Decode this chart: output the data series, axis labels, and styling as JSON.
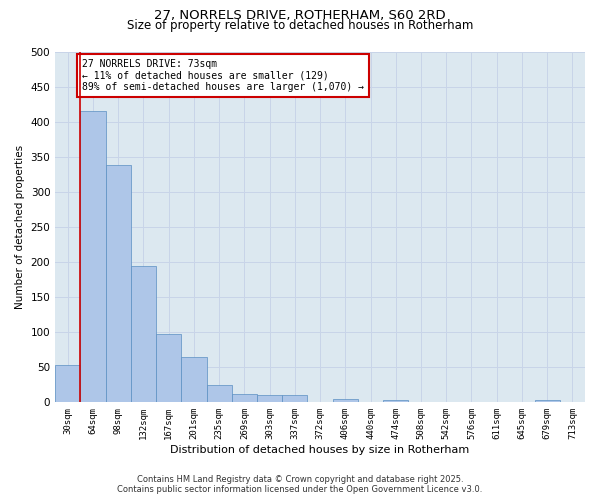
{
  "title_line1": "27, NORRELS DRIVE, ROTHERHAM, S60 2RD",
  "title_line2": "Size of property relative to detached houses in Rotherham",
  "xlabel": "Distribution of detached houses by size in Rotherham",
  "ylabel": "Number of detached properties",
  "categories": [
    "30sqm",
    "64sqm",
    "98sqm",
    "132sqm",
    "167sqm",
    "201sqm",
    "235sqm",
    "269sqm",
    "303sqm",
    "337sqm",
    "372sqm",
    "406sqm",
    "440sqm",
    "474sqm",
    "508sqm",
    "542sqm",
    "576sqm",
    "611sqm",
    "645sqm",
    "679sqm",
    "713sqm"
  ],
  "values": [
    53,
    415,
    338,
    195,
    97,
    65,
    25,
    12,
    10,
    10,
    0,
    5,
    0,
    3,
    0,
    0,
    0,
    0,
    0,
    3,
    0
  ],
  "bar_color": "#aec6e8",
  "bar_edge_color": "#5a8fc2",
  "vline_color": "#cc0000",
  "annotation_box_text": "27 NORRELS DRIVE: 73sqm\n← 11% of detached houses are smaller (129)\n89% of semi-detached houses are larger (1,070) →",
  "annotation_box_color": "#cc0000",
  "annotation_box_bg": "#ffffff",
  "ylim": [
    0,
    500
  ],
  "yticks": [
    0,
    50,
    100,
    150,
    200,
    250,
    300,
    350,
    400,
    450,
    500
  ],
  "grid_color": "#c8d4e8",
  "bg_color": "#dce8f0",
  "fig_bg_color": "#ffffff",
  "footer_line1": "Contains HM Land Registry data © Crown copyright and database right 2025.",
  "footer_line2": "Contains public sector information licensed under the Open Government Licence v3.0."
}
